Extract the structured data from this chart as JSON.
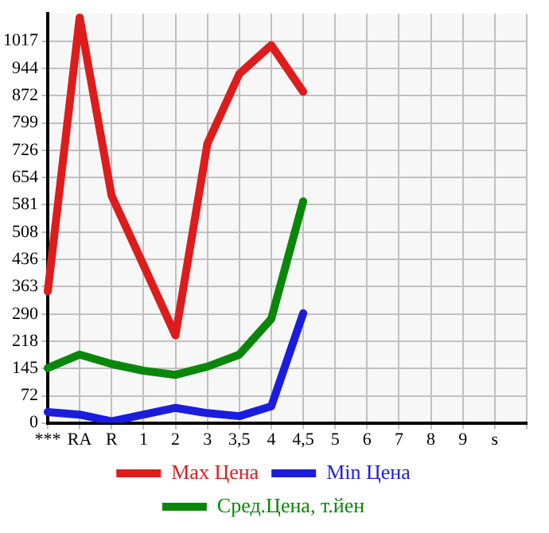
{
  "chart_data": {
    "type": "line",
    "categories": [
      "***",
      "RA",
      "R",
      "1",
      "2",
      "3",
      "3,5",
      "4",
      "4,5",
      "5",
      "6",
      "7",
      "8",
      "9",
      "s",
      null
    ],
    "series": [
      {
        "name": "Max Цена",
        "color": "#dd1c1c",
        "values": [
          350,
          1080,
          605,
          420,
          233,
          744,
          930,
          1006,
          882,
          null,
          null,
          null,
          null,
          null,
          null,
          null
        ]
      },
      {
        "name": "Min Цена",
        "color": "#1c1cdd",
        "values": [
          29,
          22,
          4,
          22,
          40,
          26,
          18,
          44,
          292,
          null,
          null,
          null,
          null,
          null,
          null,
          null
        ]
      },
      {
        "name": "Сред.Цена, т.йен",
        "color": "#0a870a",
        "values": [
          146,
          182,
          157,
          139,
          128,
          150,
          182,
          277,
          590,
          null,
          null,
          null,
          null,
          null,
          null,
          null
        ]
      }
    ],
    "ylim": [
      0,
      1090
    ],
    "yticks": [
      0,
      72,
      145,
      218,
      290,
      363,
      436,
      508,
      581,
      654,
      726,
      799,
      872,
      944,
      1017
    ],
    "grid": true,
    "legend": "bottom",
    "marker": "none",
    "line_style": "solid"
  }
}
